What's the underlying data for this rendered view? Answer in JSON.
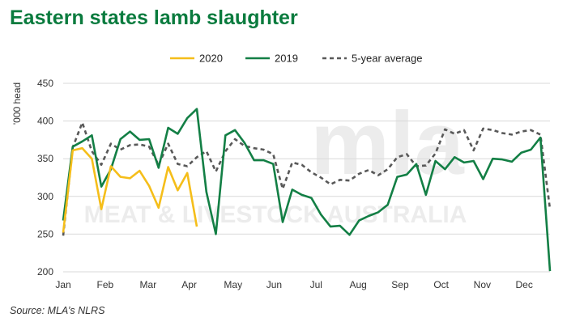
{
  "title": "Eastern states lamb slaughter",
  "source": "Source: MLA’s NLRS",
  "watermark": {
    "logo": "mla",
    "text": "MEAT & LIVESTOCK AUSTRALIA"
  },
  "chart_data": {
    "type": "line",
    "title": "Eastern states lamb slaughter",
    "ylabel": "'000 head",
    "xlabel": "",
    "ylim": [
      200,
      450
    ],
    "yticks": [
      200,
      250,
      300,
      350,
      400,
      450
    ],
    "xlim": [
      1,
      52
    ],
    "month_labels": [
      "Jan",
      "Feb",
      "Mar",
      "Apr",
      "May",
      "Jun",
      "Jul",
      "Aug",
      "Sep",
      "Oct",
      "Nov",
      "Dec"
    ],
    "month_weeks": [
      1,
      5.4,
      9.9,
      14.2,
      18.8,
      23.1,
      27.5,
      31.9,
      36.3,
      40.6,
      44.9,
      49.3
    ],
    "grid": true,
    "legend_position": "top",
    "series": [
      {
        "name": "2020",
        "color": "#f5be1a",
        "dash": "",
        "x": [
          1,
          2,
          3,
          4,
          5,
          6,
          7,
          8,
          9,
          10,
          11,
          12,
          13,
          14,
          15
        ],
        "y": [
          252,
          361,
          364,
          350,
          283,
          340,
          326,
          324,
          334,
          314,
          285,
          339,
          308,
          331,
          260
        ]
      },
      {
        "name": "2019",
        "color": "#137f45",
        "dash": "",
        "x": [
          1,
          2,
          3,
          4,
          5,
          6,
          7,
          8,
          9,
          10,
          11,
          12,
          13,
          14,
          15,
          16,
          17,
          18,
          19,
          20,
          21,
          22,
          23,
          24,
          25,
          26,
          27,
          28,
          29,
          30,
          31,
          32,
          33,
          34,
          35,
          36,
          37,
          38,
          39,
          40,
          41,
          42,
          43,
          44,
          45,
          46,
          47,
          48,
          49,
          50,
          51,
          52
        ],
        "y": [
          268,
          366,
          373,
          381,
          313,
          336,
          376,
          386,
          375,
          376,
          338,
          391,
          383,
          404,
          416,
          306,
          250,
          381,
          388,
          371,
          348,
          348,
          343,
          266,
          309,
          302,
          298,
          276,
          260,
          261,
          249,
          268,
          274,
          279,
          289,
          326,
          329,
          343,
          302,
          347,
          336,
          352,
          345,
          347,
          323,
          350,
          349,
          346,
          358,
          362,
          378,
          201
        ]
      },
      {
        "name": "5-year average",
        "color": "#595959",
        "dash": "5,4",
        "x": [
          1,
          2,
          3,
          4,
          5,
          6,
          7,
          8,
          9,
          10,
          11,
          12,
          13,
          14,
          15,
          16,
          17,
          18,
          19,
          20,
          21,
          22,
          23,
          24,
          25,
          26,
          27,
          28,
          29,
          30,
          31,
          32,
          33,
          34,
          35,
          36,
          37,
          38,
          39,
          40,
          41,
          42,
          43,
          44,
          45,
          46,
          47,
          48,
          49,
          50,
          51,
          52
        ],
        "y": [
          248,
          365,
          398,
          360,
          342,
          370,
          362,
          368,
          369,
          366,
          342,
          370,
          343,
          340,
          352,
          360,
          333,
          360,
          376,
          367,
          364,
          362,
          356,
          310,
          345,
          342,
          332,
          325,
          316,
          322,
          321,
          330,
          335,
          328,
          336,
          352,
          356,
          340,
          341,
          357,
          389,
          383,
          388,
          361,
          390,
          388,
          384,
          382,
          386,
          388,
          382,
          283
        ]
      }
    ]
  }
}
